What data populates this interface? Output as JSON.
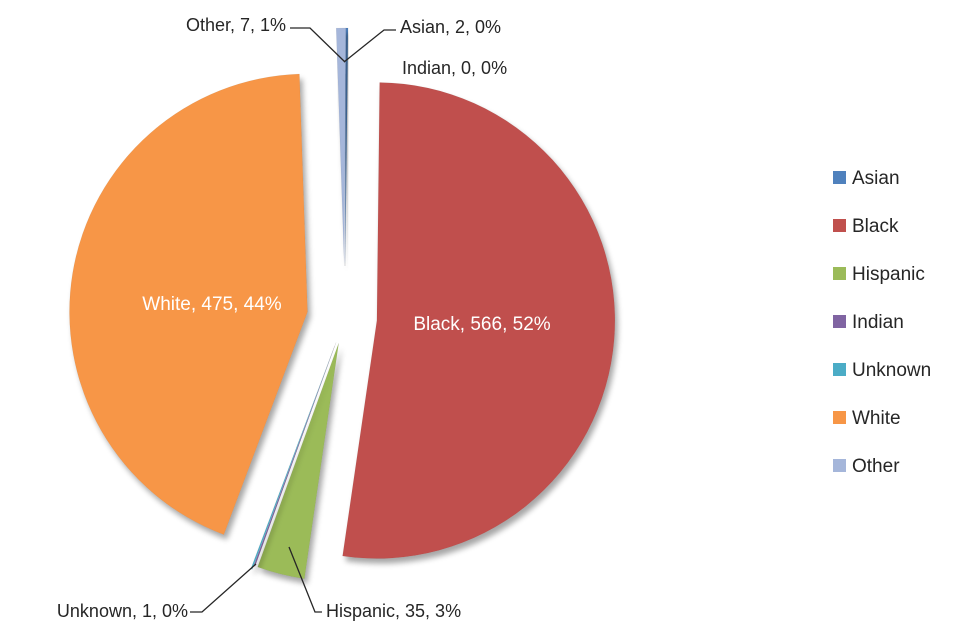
{
  "chart_data": {
    "type": "pie",
    "title": "",
    "categories": [
      "Asian",
      "Black",
      "Hispanic",
      "Indian",
      "Unknown",
      "White",
      "Other"
    ],
    "values": [
      2,
      566,
      35,
      0,
      1,
      475,
      7
    ],
    "percent_labels": [
      "0%",
      "52%",
      "3%",
      "0%",
      "0%",
      "44%",
      "1%"
    ],
    "data_labels": [
      "Asian, 2, 0%",
      "Black, 566, 52%",
      "Hispanic, 35, 3%",
      "Indian, 0, 0%",
      "Unknown, 1, 0%",
      "White, 475, 44%",
      "Other, 7, 1%"
    ],
    "colors": [
      "#4F81BD",
      "#C0504D",
      "#9BBB59",
      "#8064A2",
      "#4BACC6",
      "#F79646",
      "#A5B6DA"
    ],
    "exploded": true,
    "legend": {
      "position": "right",
      "entries": [
        "Asian",
        "Black",
        "Hispanic",
        "Indian",
        "Unknown",
        "White",
        "Other"
      ]
    }
  }
}
